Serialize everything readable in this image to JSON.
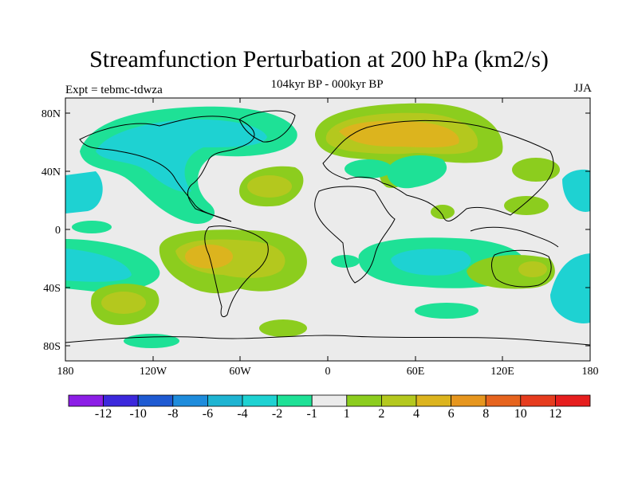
{
  "title": "Streamfunction Perturbation at 200 hPa (km2/s)",
  "subtitle": "104kyr BP - 000kyr BP",
  "left_label": "Expt = tebmc-tdwza",
  "right_label": "JJA",
  "axes": {
    "y_ticks": [
      "80N",
      "40N",
      "0",
      "40S",
      "80S"
    ],
    "x_ticks": [
      "180",
      "120W",
      "60W",
      "0",
      "60E",
      "120E",
      "180"
    ]
  },
  "colorbar": {
    "colors": [
      "#8c1ee6",
      "#3c28dc",
      "#1e5ad2",
      "#1e8cdc",
      "#1eb4d2",
      "#1ed2d2",
      "#1ee196",
      "#ebebeb",
      "#8ccd1e",
      "#b4c81e",
      "#dcb41e",
      "#e6961e",
      "#e6641e",
      "#e63c1e",
      "#e61e1e"
    ],
    "labels": [
      "-12",
      "-10",
      "-8",
      "-6",
      "-4",
      "-2",
      "-1",
      "1",
      "2",
      "4",
      "6",
      "8",
      "10",
      "12"
    ]
  }
}
